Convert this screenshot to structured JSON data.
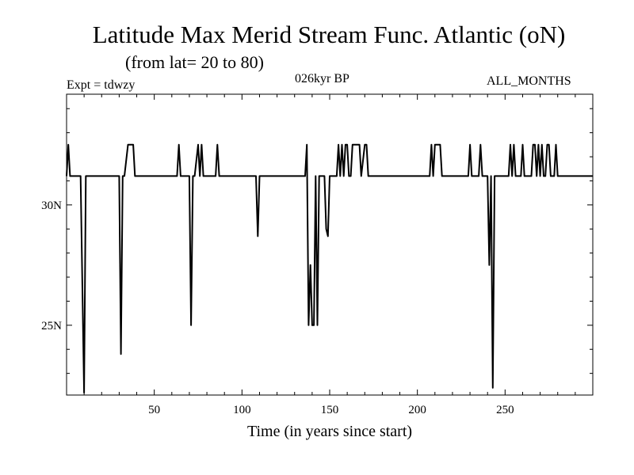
{
  "chart_data": {
    "type": "line",
    "title": "Latitude Max Merid Stream Func. Atlantic (oN)",
    "subtitle": "(from lat= 20 to 80)",
    "experiment_label": "Expt = tdwzy",
    "period_label": "026kyr BP",
    "months_label": "ALL_MONTHS",
    "xlabel": "Time (in years since start)",
    "ylabel": "",
    "xlim": [
      0,
      300
    ],
    "ylim": [
      22.1,
      34.6
    ],
    "x_ticks": [
      50,
      100,
      150,
      200,
      250
    ],
    "x_tick_labels": [
      "50",
      "100",
      "150",
      "200",
      "250"
    ],
    "y_ticks": [
      25,
      30
    ],
    "y_tick_labels": [
      "25N",
      "30N"
    ],
    "grid": false,
    "series": [
      {
        "name": "",
        "color": "#000000",
        "x": [
          0,
          1,
          2,
          8,
          10,
          11,
          30,
          31,
          32,
          33,
          35,
          36,
          38,
          39,
          41,
          42,
          63,
          64,
          65,
          66,
          70,
          71,
          72,
          73,
          75,
          76,
          77,
          78,
          85,
          86,
          87,
          108,
          109,
          110,
          136,
          137,
          138,
          139,
          140,
          141,
          142,
          143,
          144,
          145,
          146,
          147,
          148,
          149,
          150,
          151,
          152,
          153,
          154,
          155,
          156,
          157,
          158,
          159,
          160,
          161,
          162,
          163,
          164,
          165,
          166,
          167,
          168,
          170,
          171,
          172,
          174,
          175,
          176,
          207,
          208,
          209,
          210,
          211,
          213,
          214,
          216,
          217,
          218,
          229,
          230,
          231,
          235,
          236,
          237,
          240,
          241,
          242,
          243,
          244,
          245,
          246,
          252,
          253,
          254,
          255,
          256,
          257,
          259,
          260,
          261,
          262,
          265,
          266,
          267,
          268,
          269,
          270,
          271,
          272,
          273,
          274,
          275,
          276,
          278,
          279,
          280,
          281,
          282,
          300
        ],
        "y": [
          31.2,
          32.5,
          31.2,
          31.2,
          22.2,
          31.2,
          31.2,
          23.8,
          31.2,
          31.2,
          32.5,
          32.5,
          32.5,
          31.2,
          31.2,
          31.2,
          31.2,
          32.5,
          31.2,
          31.2,
          31.2,
          25.0,
          31.2,
          31.2,
          32.5,
          31.2,
          32.5,
          31.2,
          31.2,
          32.5,
          31.2,
          31.2,
          28.7,
          31.2,
          31.2,
          32.5,
          25.0,
          27.5,
          25.0,
          25.0,
          31.2,
          25.0,
          31.2,
          31.2,
          31.2,
          31.2,
          29.0,
          28.7,
          31.2,
          31.2,
          31.2,
          31.2,
          31.2,
          32.5,
          31.2,
          32.5,
          31.2,
          32.5,
          32.5,
          31.2,
          31.2,
          32.5,
          32.5,
          32.5,
          32.5,
          32.5,
          31.2,
          32.5,
          32.5,
          31.2,
          31.2,
          31.2,
          31.2,
          31.2,
          32.5,
          31.2,
          32.5,
          32.5,
          32.5,
          31.2,
          31.2,
          31.2,
          31.2,
          31.2,
          32.5,
          31.2,
          31.2,
          32.5,
          31.2,
          31.2,
          27.5,
          31.2,
          22.4,
          31.2,
          31.2,
          31.2,
          31.2,
          32.5,
          31.2,
          32.5,
          31.2,
          31.2,
          31.2,
          32.5,
          31.2,
          31.2,
          31.2,
          32.5,
          32.5,
          31.2,
          32.5,
          31.2,
          32.5,
          31.2,
          31.2,
          32.5,
          32.5,
          31.2,
          31.2,
          32.5,
          31.2,
          31.2,
          31.2,
          31.2
        ]
      }
    ]
  }
}
